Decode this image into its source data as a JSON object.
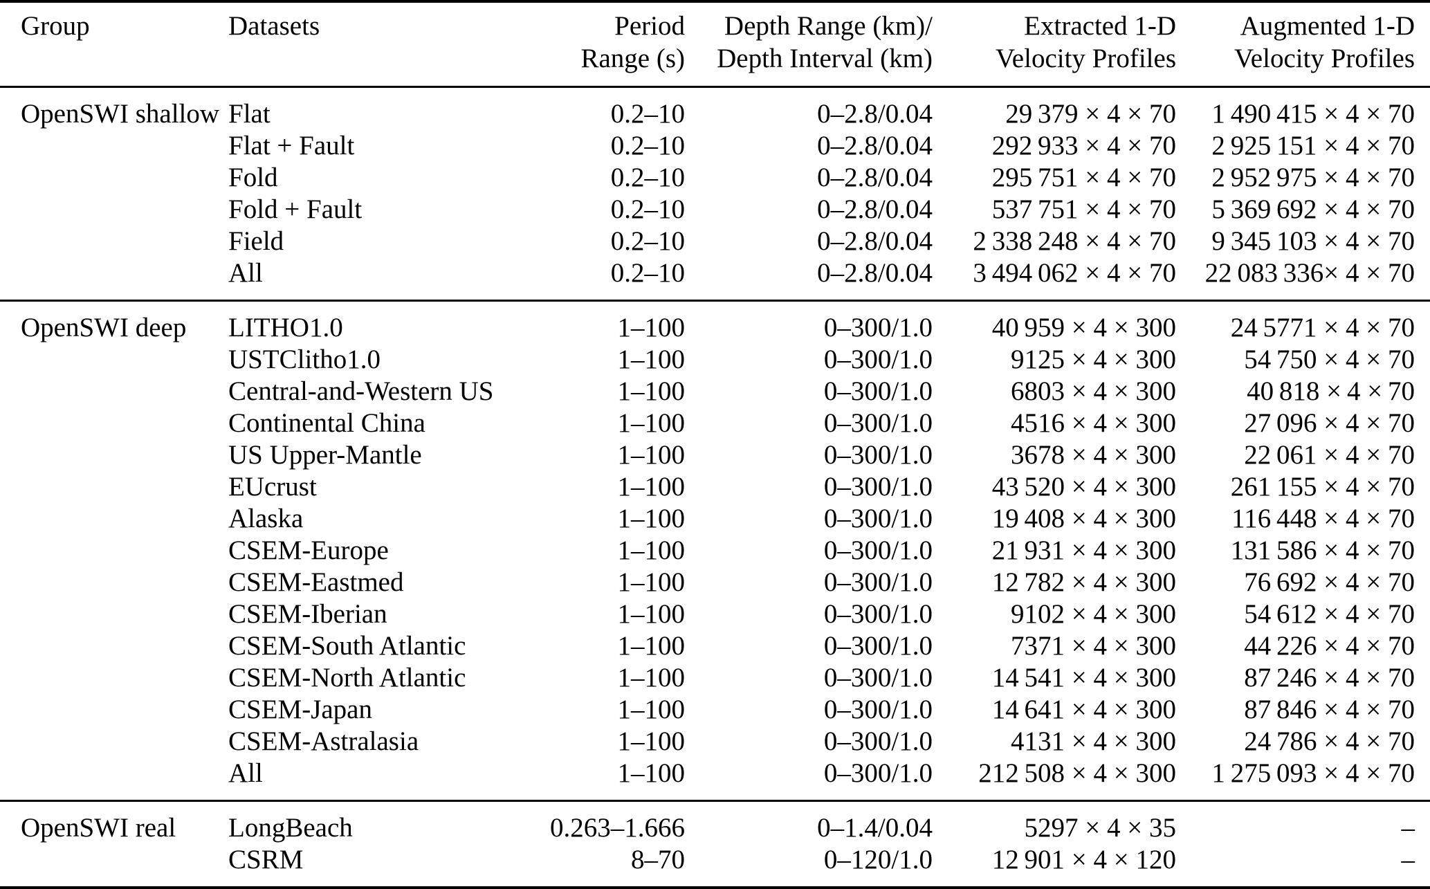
{
  "table": {
    "columns": [
      {
        "id": "group",
        "align": "left",
        "label_lines": [
          "Group"
        ]
      },
      {
        "id": "datasets",
        "align": "left",
        "label_lines": [
          "Datasets"
        ]
      },
      {
        "id": "period",
        "align": "right",
        "label_lines": [
          "Period",
          "Range (s)"
        ]
      },
      {
        "id": "depth",
        "align": "right",
        "label_lines": [
          "Depth Range (km)/",
          "Depth Interval (km)"
        ]
      },
      {
        "id": "extracted",
        "align": "right",
        "label_lines": [
          "Extracted 1-D",
          "Velocity Profiles"
        ]
      },
      {
        "id": "augmented",
        "align": "right",
        "label_lines": [
          "Augmented 1-D",
          "Velocity Profiles"
        ]
      }
    ],
    "groups": [
      {
        "name": "OpenSWI shallow",
        "rows": [
          {
            "dataset": "Flat",
            "period": "0.2–10",
            "depth": "0–2.8/0.04",
            "extracted": "29 379 × 4 × 70",
            "augmented": "1 490 415 × 4 × 70"
          },
          {
            "dataset": "Flat + Fault",
            "period": "0.2–10",
            "depth": "0–2.8/0.04",
            "extracted": "292 933 × 4 × 70",
            "augmented": "2 925 151 × 4 × 70"
          },
          {
            "dataset": "Fold",
            "period": "0.2–10",
            "depth": "0–2.8/0.04",
            "extracted": "295 751 × 4 × 70",
            "augmented": "2 952 975 × 4 × 70"
          },
          {
            "dataset": "Fold + Fault",
            "period": "0.2–10",
            "depth": "0–2.8/0.04",
            "extracted": "537 751 × 4 × 70",
            "augmented": "5 369 692 × 4 × 70"
          },
          {
            "dataset": "Field",
            "period": "0.2–10",
            "depth": "0–2.8/0.04",
            "extracted": "2 338 248 × 4 × 70",
            "augmented": "9 345 103 × 4 × 70"
          },
          {
            "dataset": "All",
            "period": "0.2–10",
            "depth": "0–2.8/0.04",
            "extracted": "3 494 062 × 4 × 70",
            "augmented": "22 083 336× 4 × 70"
          }
        ]
      },
      {
        "name": "OpenSWI deep",
        "rows": [
          {
            "dataset": "LITHO1.0",
            "period": "1–100",
            "depth": "0–300/1.0",
            "extracted": "40 959 × 4 × 300",
            "augmented": "24 5771 × 4 × 70"
          },
          {
            "dataset": "USTClitho1.0",
            "period": "1–100",
            "depth": "0–300/1.0",
            "extracted": "9125 × 4 × 300",
            "augmented": "54 750 × 4 × 70"
          },
          {
            "dataset": "Central-and-Western US",
            "period": "1–100",
            "depth": "0–300/1.0",
            "extracted": "6803 × 4 × 300",
            "augmented": "40 818 × 4 × 70"
          },
          {
            "dataset": "Continental China",
            "period": "1–100",
            "depth": "0–300/1.0",
            "extracted": "4516 × 4 × 300",
            "augmented": "27 096 × 4 × 70"
          },
          {
            "dataset": "US Upper-Mantle",
            "period": "1–100",
            "depth": "0–300/1.0",
            "extracted": "3678 × 4 × 300",
            "augmented": "22 061 × 4 × 70"
          },
          {
            "dataset": "EUcrust",
            "period": "1–100",
            "depth": "0–300/1.0",
            "extracted": "43 520 × 4 × 300",
            "augmented": "261 155 × 4 × 70"
          },
          {
            "dataset": "Alaska",
            "period": "1–100",
            "depth": "0–300/1.0",
            "extracted": "19 408 × 4 × 300",
            "augmented": "116 448 × 4 × 70"
          },
          {
            "dataset": "CSEM-Europe",
            "period": "1–100",
            "depth": "0–300/1.0",
            "extracted": "21 931 × 4 × 300",
            "augmented": "131 586 × 4 × 70"
          },
          {
            "dataset": "CSEM-Eastmed",
            "period": "1–100",
            "depth": "0–300/1.0",
            "extracted": "12 782 × 4 × 300",
            "augmented": "76 692 × 4 × 70"
          },
          {
            "dataset": "CSEM-Iberian",
            "period": "1–100",
            "depth": "0–300/1.0",
            "extracted": "9102 × 4 × 300",
            "augmented": "54 612 × 4 × 70"
          },
          {
            "dataset": "CSEM-South Atlantic",
            "period": "1–100",
            "depth": "0–300/1.0",
            "extracted": "7371 × 4 × 300",
            "augmented": "44 226 × 4 × 70"
          },
          {
            "dataset": "CSEM-North Atlantic",
            "period": "1–100",
            "depth": "0–300/1.0",
            "extracted": "14 541 × 4 × 300",
            "augmented": "87 246 × 4 × 70"
          },
          {
            "dataset": "CSEM-Japan",
            "period": "1–100",
            "depth": "0–300/1.0",
            "extracted": "14 641 × 4 × 300",
            "augmented": "87 846 × 4 × 70"
          },
          {
            "dataset": "CSEM-Astralasia",
            "period": "1–100",
            "depth": "0–300/1.0",
            "extracted": "4131 × 4 × 300",
            "augmented": "24 786 × 4 × 70"
          },
          {
            "dataset": "All",
            "period": "1–100",
            "depth": "0–300/1.0",
            "extracted": "212 508 × 4 × 300",
            "augmented": "1 275 093 × 4 × 70"
          }
        ]
      },
      {
        "name": "OpenSWI real",
        "rows": [
          {
            "dataset": "LongBeach",
            "period": "0.263–1.666",
            "depth": "0–1.4/0.04",
            "extracted": "5297 × 4 × 35",
            "augmented": "–"
          },
          {
            "dataset": "CSRM",
            "period": "8–70",
            "depth": "0–120/1.0",
            "extracted": "12 901 × 4 × 120",
            "augmented": "–"
          }
        ]
      }
    ]
  }
}
